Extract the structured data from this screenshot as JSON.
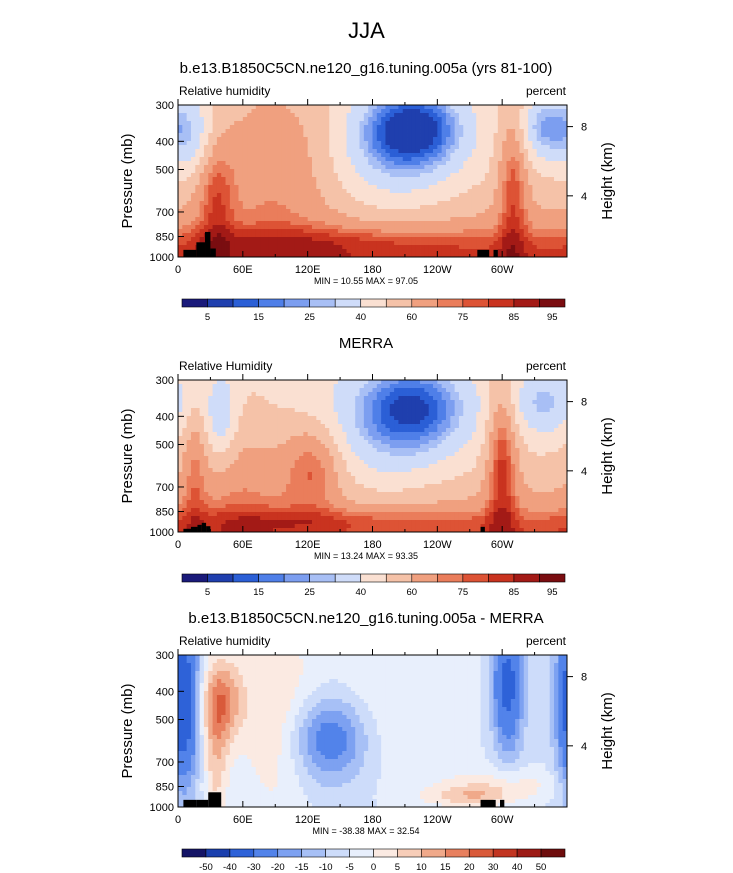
{
  "main_title": "JJA",
  "colors": {
    "model": [
      "#1a1a7a",
      "#1f3fae",
      "#2b5fd6",
      "#4f7fe8",
      "#7c9ef0",
      "#a8bff5",
      "#cfdcf9",
      "#fae0d2",
      "#f5c2a8",
      "#f0a07f",
      "#ea7d5b",
      "#dd5335",
      "#c9331f",
      "#a31a16",
      "#7a0d10"
    ],
    "diff": [
      "#141466",
      "#1a3fae",
      "#2e62d8",
      "#5283ea",
      "#7da1f1",
      "#a7c0f6",
      "#cddcfa",
      "#e8effc",
      "#fbeae2",
      "#f7cdb8",
      "#f0a98a",
      "#e8805f",
      "#d95a3a",
      "#c23521",
      "#9d1b15",
      "#6e0d0d"
    ],
    "land": "#000000"
  },
  "panels": [
    {
      "title": "b.e13.B1850C5CN.ne120_g16.tuning.005a (yrs 81-100)",
      "left_label": "Relative humidity",
      "right_label": "percent",
      "stats": "MIN =  10.55  MAX =  97.05"
    },
    {
      "title": "MERRA",
      "left_label": "Relative Humidity",
      "right_label": "percent",
      "stats": "MIN =  13.24  MAX =  93.35"
    },
    {
      "title": "b.e13.B1850C5CN.ne120_g16.tuning.005a - MERRA",
      "left_label": "Relative humidity",
      "right_label": "percent",
      "stats": "MIN = -38.38  MAX =  32.54"
    }
  ],
  "chart_data": [
    {
      "type": "heatmap",
      "title": "b.e13.B1850C5CN.ne120_g16.tuning.005a (yrs 81-100)",
      "variable": "Relative humidity",
      "units": "percent",
      "ylabel": "Pressure (mb)",
      "ylabel_right": "Height (km)",
      "x_ticks": [
        "0",
        "60E",
        "120E",
        "180",
        "120W",
        "60W"
      ],
      "y_ticks": [
        "300",
        "400",
        "500",
        "700",
        "850",
        "1000"
      ],
      "y_ticks_right": [
        "8",
        "4"
      ],
      "colorbar_labels": [
        "5",
        "15",
        "25",
        "40",
        "60",
        "75",
        "85",
        "95"
      ],
      "min": 10.55,
      "max": 97.05
    },
    {
      "type": "heatmap",
      "title": "MERRA",
      "variable": "Relative Humidity",
      "units": "percent",
      "ylabel": "Pressure (mb)",
      "ylabel_right": "Height (km)",
      "x_ticks": [
        "0",
        "60E",
        "120E",
        "180",
        "120W",
        "60W"
      ],
      "y_ticks": [
        "300",
        "400",
        "500",
        "700",
        "850",
        "1000"
      ],
      "y_ticks_right": [
        "8",
        "4"
      ],
      "colorbar_labels": [
        "5",
        "15",
        "25",
        "40",
        "60",
        "75",
        "85",
        "95"
      ],
      "min": 13.24,
      "max": 93.35
    },
    {
      "type": "heatmap",
      "title": "b.e13.B1850C5CN.ne120_g16.tuning.005a - MERRA",
      "variable": "Relative humidity",
      "units": "percent",
      "ylabel": "Pressure (mb)",
      "ylabel_right": "Height (km)",
      "x_ticks": [
        "0",
        "60E",
        "120E",
        "180",
        "120W",
        "60W"
      ],
      "y_ticks": [
        "300",
        "400",
        "500",
        "700",
        "850",
        "1000"
      ],
      "y_ticks_right": [
        "8",
        "4"
      ],
      "colorbar_labels": [
        "-50",
        "-40",
        "-30",
        "-20",
        "-15",
        "-10",
        "-5",
        "0",
        "5",
        "10",
        "15",
        "20",
        "30",
        "40",
        "50"
      ],
      "min": -38.38,
      "max": 32.54
    }
  ]
}
